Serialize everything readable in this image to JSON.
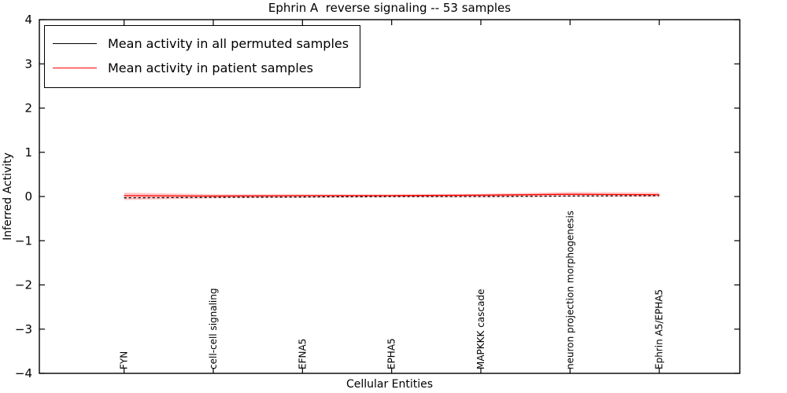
{
  "chart_data": {
    "type": "line",
    "title": "Ephrin A  reverse signaling -- 53 samples",
    "xlabel": "Cellular Entities",
    "ylabel": "Inferred Activity",
    "ylim": [
      -4,
      4
    ],
    "yticks": [
      -4,
      -3,
      -2,
      -1,
      0,
      1,
      2,
      3,
      4
    ],
    "ytick_labels": [
      "−4",
      "−3",
      "−2",
      "−1",
      "0",
      "1",
      "2",
      "3",
      "4"
    ],
    "categories": [
      "FYN",
      "cell-cell signaling",
      "EFNA5",
      "EPHA5",
      "MAPKKK cascade",
      "neuron projection morphogenesis",
      "Ephrin A5/EPHA5"
    ],
    "series": [
      {
        "name": "Mean activity in all permuted samples",
        "color": "#000000",
        "style": "dashed",
        "values": [
          -0.03,
          -0.02,
          -0.01,
          0.0,
          0.0,
          0.01,
          0.02
        ]
      },
      {
        "name": "Mean activity in patient samples",
        "color": "#ff0000",
        "style": "solid",
        "values": [
          0.02,
          0.01,
          0.02,
          0.02,
          0.03,
          0.05,
          0.04
        ]
      }
    ],
    "band": {
      "series": "Mean activity in patient samples",
      "color": "rgba(255,80,80,0.30)",
      "upper": [
        0.09,
        0.05,
        0.05,
        0.05,
        0.06,
        0.1,
        0.09
      ],
      "lower": [
        -0.08,
        -0.04,
        -0.03,
        -0.02,
        -0.02,
        0.0,
        -0.01
      ]
    },
    "legend_position": "upper left",
    "grid": false,
    "axis_color": "#000000"
  }
}
